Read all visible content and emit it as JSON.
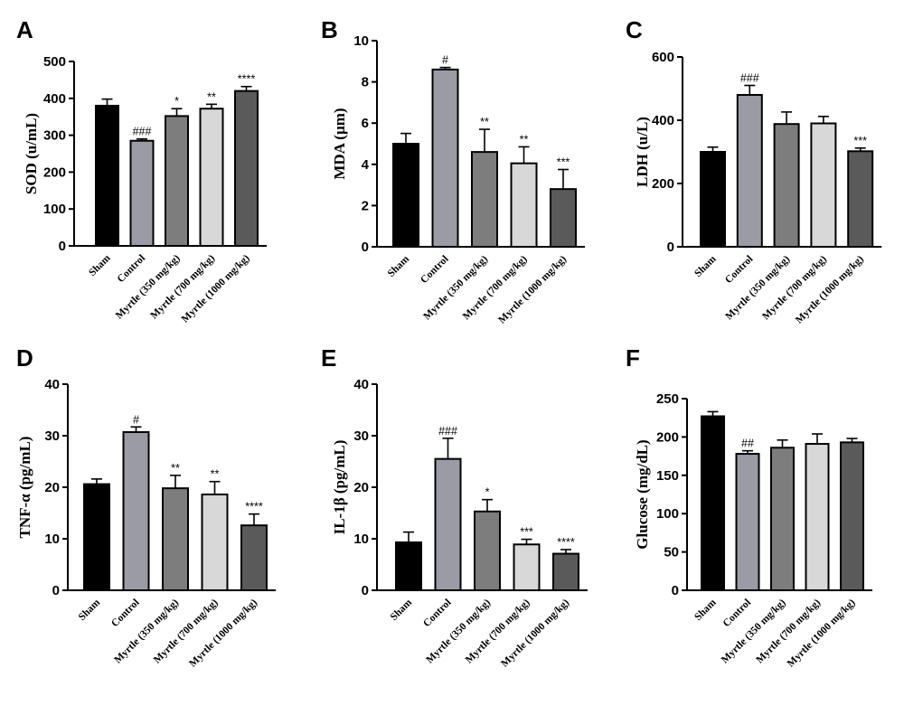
{
  "chart_data": [
    {
      "panel": "A",
      "type": "bar",
      "ylabel": "SOD (u/mL)",
      "ylim": [
        0,
        500
      ],
      "yticks": [
        0,
        100,
        200,
        300,
        400,
        500
      ],
      "categories": [
        "Sham",
        "Control",
        "Myrtle (350 mg/kg)",
        "Myrtle (700 mg/kg)",
        "Myrtle (1000 mg/kg)"
      ],
      "values": [
        380,
        285,
        352,
        372,
        420
      ],
      "errors": [
        18,
        5,
        20,
        12,
        12
      ],
      "annotations": [
        "",
        "###",
        "*",
        "**",
        "****"
      ],
      "colors": [
        "#000000",
        "#9b9ba6",
        "#7d7d7d",
        "#d8d8d8",
        "#5a5a5a"
      ]
    },
    {
      "panel": "B",
      "type": "bar",
      "ylabel": "MDA (µm)",
      "ylim": [
        0,
        10
      ],
      "yticks": [
        0,
        2,
        4,
        6,
        8,
        10
      ],
      "categories": [
        "Sham",
        "Control",
        "Myrtle (350 mg/kg)",
        "Myrtle (700 mg/kg)",
        "Myrtle (1000 mg/kg)"
      ],
      "values": [
        5.0,
        8.6,
        4.6,
        4.05,
        2.8
      ],
      "errors": [
        0.5,
        0.1,
        1.1,
        0.8,
        0.95
      ],
      "annotations": [
        "",
        "#",
        "**",
        "**",
        "***"
      ],
      "colors": [
        "#000000",
        "#9b9ba6",
        "#7d7d7d",
        "#d8d8d8",
        "#5a5a5a"
      ]
    },
    {
      "panel": "C",
      "type": "bar",
      "ylabel": "LDH (u/L)",
      "ylim": [
        0,
        600
      ],
      "yticks": [
        0,
        200,
        400,
        600
      ],
      "categories": [
        "Sham",
        "Control",
        "Myrtle (350 mg/kg)",
        "Myrtle (700 mg/kg)",
        "Myrtle (1000 mg/kg)"
      ],
      "values": [
        300,
        480,
        388,
        390,
        302
      ],
      "errors": [
        15,
        30,
        38,
        22,
        10
      ],
      "annotations": [
        "",
        "###",
        "",
        "",
        "***"
      ],
      "colors": [
        "#000000",
        "#9b9ba6",
        "#7d7d7d",
        "#d8d8d8",
        "#5a5a5a"
      ]
    },
    {
      "panel": "D",
      "type": "bar",
      "ylabel": "TNF-α (pg/mL)",
      "ylim": [
        0,
        40
      ],
      "yticks": [
        0,
        10,
        20,
        30,
        40
      ],
      "categories": [
        "Sham",
        "Control",
        "Myrtle (350 mg/kg)",
        "Myrtle (700 mg/kg)",
        "Myrtle (1000 mg/kg)"
      ],
      "values": [
        20.6,
        30.7,
        19.8,
        18.6,
        12.6
      ],
      "errors": [
        1.0,
        1.0,
        2.5,
        2.5,
        2.2
      ],
      "annotations": [
        "",
        "#",
        "**",
        "**",
        "****"
      ],
      "colors": [
        "#000000",
        "#9b9ba6",
        "#7d7d7d",
        "#d8d8d8",
        "#5a5a5a"
      ]
    },
    {
      "panel": "E",
      "type": "bar",
      "ylabel": "IL-1β (pg/mL)",
      "ylim": [
        0,
        40
      ],
      "yticks": [
        0,
        10,
        20,
        30,
        40
      ],
      "categories": [
        "Sham",
        "Control",
        "Myrtle (350 mg/kg)",
        "Myrtle (700 mg/kg)",
        "Myrtle (1000 mg/kg)"
      ],
      "values": [
        9.3,
        25.5,
        15.3,
        8.9,
        7.1
      ],
      "errors": [
        2.0,
        4.0,
        2.3,
        1.0,
        0.8
      ],
      "annotations": [
        "",
        "###",
        "*",
        "***",
        "****"
      ],
      "colors": [
        "#000000",
        "#9b9ba6",
        "#7d7d7d",
        "#d8d8d8",
        "#5a5a5a"
      ]
    },
    {
      "panel": "F",
      "type": "bar",
      "ylabel": "Glucose (mg/dL)",
      "ylim": [
        0,
        250
      ],
      "yticks": [
        0,
        50,
        100,
        150,
        200,
        250
      ],
      "categories": [
        "Sham",
        "Control",
        "Myrtle (350 mg/kg)",
        "Myrtle (700 mg/kg)",
        "Myrtle (1000 mg/kg)"
      ],
      "values": [
        227,
        178,
        186,
        191,
        193
      ],
      "errors": [
        6,
        4,
        10,
        13,
        5
      ],
      "annotations": [
        "",
        "##",
        "",
        "",
        ""
      ],
      "colors": [
        "#000000",
        "#9b9ba6",
        "#7d7d7d",
        "#d8d8d8",
        "#5a5a5a"
      ]
    }
  ]
}
